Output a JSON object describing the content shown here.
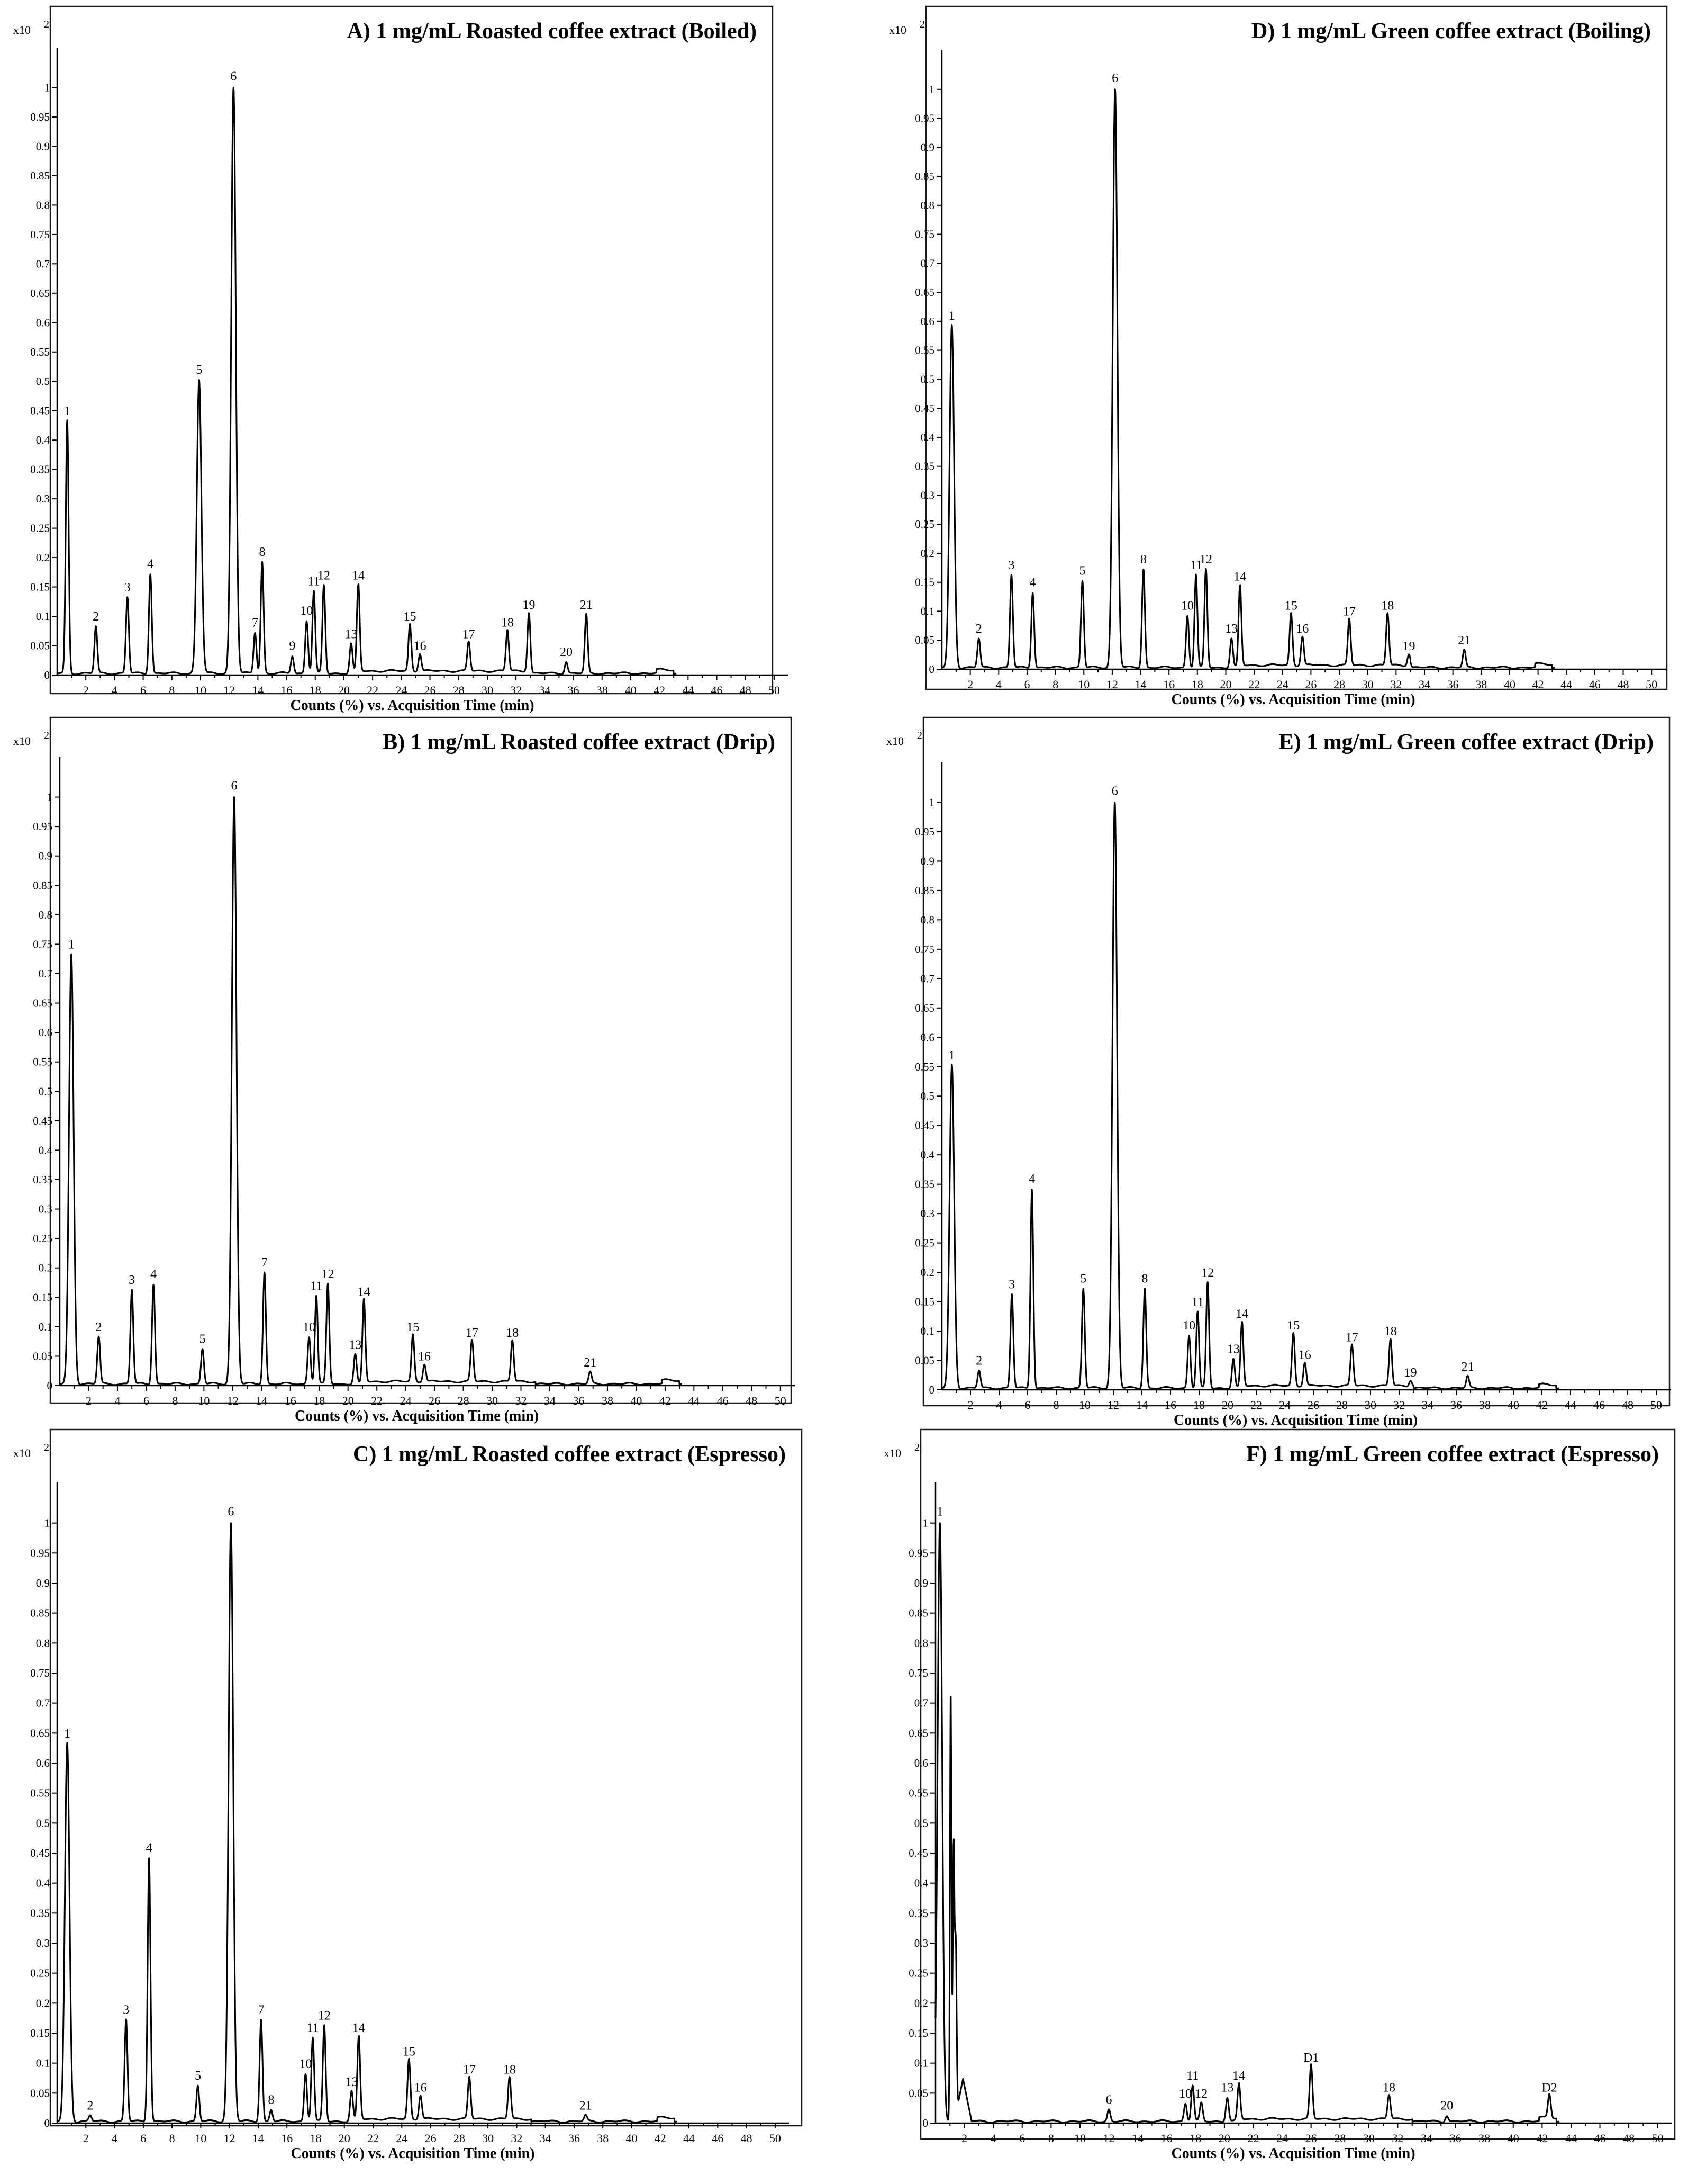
{
  "figure": {
    "x_caption": "Counts (%) vs. Acquisition Time (min)",
    "y_scale_label": "x10",
    "y_scale_exponent": "2"
  },
  "chart_data": [
    {
      "id": "A",
      "type": "line",
      "title": "A) 1 mg/mL Roasted coffee extract (Boiled)",
      "xlabel": "Counts (%) vs. Acquisition Time (min)",
      "ylabel": "x10 2",
      "xlim": [
        0,
        51
      ],
      "ylim": [
        0,
        1.05
      ],
      "x_ticks": [
        2,
        4,
        6,
        8,
        10,
        12,
        14,
        16,
        18,
        20,
        22,
        24,
        26,
        28,
        30,
        32,
        34,
        36,
        38,
        40,
        42,
        44,
        46,
        48,
        50
      ],
      "y_ticks": [
        0,
        0.05,
        0.1,
        0.15,
        0.2,
        0.25,
        0.3,
        0.35,
        0.4,
        0.45,
        0.5,
        0.55,
        0.6,
        0.65,
        0.7,
        0.75,
        0.8,
        0.85,
        0.9,
        0.95,
        1
      ],
      "peaks": [
        {
          "label": "1",
          "time": 0.7,
          "height": 0.43
        },
        {
          "label": "2",
          "time": 2.7,
          "height": 0.08
        },
        {
          "label": "3",
          "time": 4.9,
          "height": 0.13
        },
        {
          "label": "4",
          "time": 6.5,
          "height": 0.17
        },
        {
          "label": "5",
          "time": 9.9,
          "height": 0.5
        },
        {
          "label": "6",
          "time": 12.3,
          "height": 1.0
        },
        {
          "label": "7",
          "time": 13.8,
          "height": 0.07
        },
        {
          "label": "8",
          "time": 14.3,
          "height": 0.19
        },
        {
          "label": "9",
          "time": 16.4,
          "height": 0.03
        },
        {
          "label": "10",
          "time": 17.4,
          "height": 0.09
        },
        {
          "label": "11",
          "time": 17.9,
          "height": 0.14
        },
        {
          "label": "12",
          "time": 18.6,
          "height": 0.15
        },
        {
          "label": "13",
          "time": 20.5,
          "height": 0.05
        },
        {
          "label": "14",
          "time": 21.0,
          "height": 0.15
        },
        {
          "label": "15",
          "time": 24.6,
          "height": 0.08
        },
        {
          "label": "16",
          "time": 25.3,
          "height": 0.03
        },
        {
          "label": "17",
          "time": 28.7,
          "height": 0.05
        },
        {
          "label": "18",
          "time": 31.4,
          "height": 0.07
        },
        {
          "label": "19",
          "time": 32.9,
          "height": 0.1
        },
        {
          "label": "20",
          "time": 35.5,
          "height": 0.02
        },
        {
          "label": "21",
          "time": 36.9,
          "height": 0.1
        }
      ]
    },
    {
      "id": "B",
      "type": "line",
      "title": "B) 1 mg/mL Roasted coffee extract (Drip)",
      "xlabel": "Counts (%) vs. Acquisition Time (min)",
      "ylabel": "x10 2",
      "xlim": [
        0,
        51
      ],
      "ylim": [
        0,
        1.05
      ],
      "x_ticks": [
        2,
        4,
        6,
        8,
        10,
        12,
        14,
        16,
        18,
        20,
        22,
        24,
        26,
        28,
        30,
        32,
        34,
        36,
        38,
        40,
        42,
        44,
        46,
        48,
        50
      ],
      "y_ticks": [
        0,
        0.05,
        0.1,
        0.15,
        0.2,
        0.25,
        0.3,
        0.35,
        0.4,
        0.45,
        0.5,
        0.55,
        0.6,
        0.65,
        0.7,
        0.75,
        0.8,
        0.85,
        0.9,
        0.95,
        1
      ],
      "peaks": [
        {
          "label": "1",
          "time": 0.8,
          "height": 0.73
        },
        {
          "label": "2",
          "time": 2.7,
          "height": 0.08
        },
        {
          "label": "3",
          "time": 5.0,
          "height": 0.16
        },
        {
          "label": "4",
          "time": 6.5,
          "height": 0.17
        },
        {
          "label": "5",
          "time": 9.9,
          "height": 0.06
        },
        {
          "label": "6",
          "time": 12.1,
          "height": 1.0
        },
        {
          "label": "7",
          "time": 14.2,
          "height": 0.19
        },
        {
          "label": "10",
          "time": 17.3,
          "height": 0.08
        },
        {
          "label": "11",
          "time": 17.8,
          "height": 0.15
        },
        {
          "label": "12",
          "time": 18.6,
          "height": 0.17
        },
        {
          "label": "13",
          "time": 20.5,
          "height": 0.05
        },
        {
          "label": "14",
          "time": 21.1,
          "height": 0.14
        },
        {
          "label": "15",
          "time": 24.5,
          "height": 0.08
        },
        {
          "label": "16",
          "time": 25.3,
          "height": 0.03
        },
        {
          "label": "17",
          "time": 28.6,
          "height": 0.07
        },
        {
          "label": "18",
          "time": 31.4,
          "height": 0.07
        },
        {
          "label": "21",
          "time": 36.8,
          "height": 0.02
        }
      ]
    },
    {
      "id": "C",
      "type": "line",
      "title": "C) 1 mg/mL Roasted coffee extract (Espresso)",
      "xlabel": "Counts (%) vs. Acquisition Time (min)",
      "ylabel": "x10 2",
      "xlim": [
        0,
        51
      ],
      "ylim": [
        0,
        1.05
      ],
      "x_ticks": [
        2,
        4,
        6,
        8,
        10,
        12,
        14,
        16,
        18,
        20,
        22,
        24,
        26,
        28,
        30,
        32,
        34,
        36,
        38,
        40,
        42,
        44,
        46,
        48,
        50
      ],
      "y_ticks": [
        0,
        0.05,
        0.1,
        0.15,
        0.2,
        0.25,
        0.3,
        0.35,
        0.4,
        0.45,
        0.5,
        0.55,
        0.6,
        0.65,
        0.7,
        0.75,
        0.8,
        0.85,
        0.9,
        0.95,
        1
      ],
      "peaks": [
        {
          "label": "1",
          "time": 0.7,
          "height": 0.63
        },
        {
          "label": "2",
          "time": 2.3,
          "height": 0.01
        },
        {
          "label": "3",
          "time": 4.8,
          "height": 0.17
        },
        {
          "label": "4",
          "time": 6.4,
          "height": 0.44
        },
        {
          "label": "5",
          "time": 9.8,
          "height": 0.06
        },
        {
          "label": "6",
          "time": 12.1,
          "height": 1.0
        },
        {
          "label": "7",
          "time": 14.2,
          "height": 0.17
        },
        {
          "label": "8",
          "time": 14.9,
          "height": 0.02
        },
        {
          "label": "10",
          "time": 17.3,
          "height": 0.08
        },
        {
          "label": "11",
          "time": 17.8,
          "height": 0.14
        },
        {
          "label": "12",
          "time": 18.6,
          "height": 0.16
        },
        {
          "label": "13",
          "time": 20.5,
          "height": 0.05
        },
        {
          "label": "14",
          "time": 21.0,
          "height": 0.14
        },
        {
          "label": "15",
          "time": 24.5,
          "height": 0.1
        },
        {
          "label": "16",
          "time": 25.3,
          "height": 0.04
        },
        {
          "label": "17",
          "time": 28.7,
          "height": 0.07
        },
        {
          "label": "18",
          "time": 31.5,
          "height": 0.07
        },
        {
          "label": "21",
          "time": 36.8,
          "height": 0.01
        }
      ]
    },
    {
      "id": "D",
      "type": "line",
      "title": "D) 1 mg/mL Green coffee extract (Boiling)",
      "xlabel": "Counts (%) vs. Acquisition Time (min)",
      "ylabel": "x10 2",
      "xlim": [
        0,
        51
      ],
      "ylim": [
        0,
        1.05
      ],
      "x_ticks": [
        2,
        4,
        6,
        8,
        10,
        12,
        14,
        16,
        18,
        20,
        22,
        24,
        26,
        28,
        30,
        32,
        34,
        36,
        38,
        40,
        42,
        44,
        46,
        48,
        50
      ],
      "y_ticks": [
        0,
        0.05,
        0.1,
        0.15,
        0.2,
        0.25,
        0.3,
        0.35,
        0.4,
        0.45,
        0.5,
        0.55,
        0.6,
        0.65,
        0.7,
        0.75,
        0.8,
        0.85,
        0.9,
        0.95,
        1
      ],
      "peaks": [
        {
          "label": "1",
          "time": 0.7,
          "height": 0.59
        },
        {
          "label": "2",
          "time": 2.6,
          "height": 0.05
        },
        {
          "label": "3",
          "time": 4.9,
          "height": 0.16
        },
        {
          "label": "4",
          "time": 6.4,
          "height": 0.13
        },
        {
          "label": "5",
          "time": 9.9,
          "height": 0.15
        },
        {
          "label": "6",
          "time": 12.2,
          "height": 1.0
        },
        {
          "label": "8",
          "time": 14.2,
          "height": 0.17
        },
        {
          "label": "10",
          "time": 17.3,
          "height": 0.09
        },
        {
          "label": "11",
          "time": 17.9,
          "height": 0.16
        },
        {
          "label": "12",
          "time": 18.6,
          "height": 0.17
        },
        {
          "label": "13",
          "time": 20.4,
          "height": 0.05
        },
        {
          "label": "14",
          "time": 21.0,
          "height": 0.14
        },
        {
          "label": "15",
          "time": 24.6,
          "height": 0.09
        },
        {
          "label": "16",
          "time": 25.4,
          "height": 0.05
        },
        {
          "label": "17",
          "time": 28.7,
          "height": 0.08
        },
        {
          "label": "18",
          "time": 31.4,
          "height": 0.09
        },
        {
          "label": "19",
          "time": 32.9,
          "height": 0.02
        },
        {
          "label": "21",
          "time": 36.8,
          "height": 0.03
        }
      ]
    },
    {
      "id": "E",
      "type": "line",
      "title": "E) 1 mg/mL Green coffee extract (Drip)",
      "xlabel": "Counts (%) vs. Acquisition Time (min)",
      "ylabel": "x10 2",
      "xlim": [
        0,
        51
      ],
      "ylim": [
        0,
        1.05
      ],
      "x_ticks": [
        2,
        4,
        6,
        8,
        10,
        12,
        14,
        16,
        18,
        20,
        22,
        24,
        26,
        28,
        30,
        32,
        34,
        36,
        38,
        40,
        42,
        44,
        46,
        48,
        50
      ],
      "y_ticks": [
        0,
        0.05,
        0.1,
        0.15,
        0.2,
        0.25,
        0.3,
        0.35,
        0.4,
        0.45,
        0.5,
        0.55,
        0.6,
        0.65,
        0.7,
        0.75,
        0.8,
        0.85,
        0.9,
        0.95,
        1
      ],
      "peaks": [
        {
          "label": "1",
          "time": 0.7,
          "height": 0.55
        },
        {
          "label": "2",
          "time": 2.6,
          "height": 0.03
        },
        {
          "label": "3",
          "time": 4.9,
          "height": 0.16
        },
        {
          "label": "4",
          "time": 6.3,
          "height": 0.34
        },
        {
          "label": "5",
          "time": 9.9,
          "height": 0.17
        },
        {
          "label": "6",
          "time": 12.1,
          "height": 1.0
        },
        {
          "label": "8",
          "time": 14.2,
          "height": 0.17
        },
        {
          "label": "10",
          "time": 17.3,
          "height": 0.09
        },
        {
          "label": "11",
          "time": 17.9,
          "height": 0.13
        },
        {
          "label": "12",
          "time": 18.6,
          "height": 0.18
        },
        {
          "label": "13",
          "time": 20.4,
          "height": 0.05
        },
        {
          "label": "14",
          "time": 21.0,
          "height": 0.11
        },
        {
          "label": "15",
          "time": 24.6,
          "height": 0.09
        },
        {
          "label": "16",
          "time": 25.4,
          "height": 0.04
        },
        {
          "label": "17",
          "time": 28.7,
          "height": 0.07
        },
        {
          "label": "18",
          "time": 31.4,
          "height": 0.08
        },
        {
          "label": "19",
          "time": 32.8,
          "height": 0.01
        },
        {
          "label": "21",
          "time": 36.8,
          "height": 0.02
        }
      ]
    },
    {
      "id": "F",
      "type": "line",
      "title": "F) 1 mg/mL Green coffee extract (Espresso)",
      "xlabel": "Counts (%) vs. Acquisition Time (min)",
      "ylabel": "x10 2",
      "xlim": [
        0,
        51
      ],
      "ylim": [
        0,
        1.05
      ],
      "x_ticks": [
        2,
        4,
        6,
        8,
        10,
        12,
        14,
        16,
        18,
        20,
        22,
        24,
        26,
        28,
        30,
        32,
        34,
        36,
        38,
        40,
        42,
        44,
        46,
        48,
        50
      ],
      "y_ticks": [
        0,
        0.05,
        0.1,
        0.15,
        0.2,
        0.25,
        0.3,
        0.35,
        0.4,
        0.45,
        0.5,
        0.55,
        0.6,
        0.65,
        0.7,
        0.75,
        0.8,
        0.85,
        0.9,
        0.95,
        1
      ],
      "peaks": [
        {
          "label": "1",
          "time": 0.3,
          "height": 1.0
        },
        {
          "label": "6",
          "time": 12.0,
          "height": 0.02
        },
        {
          "label": "10",
          "time": 17.3,
          "height": 0.03
        },
        {
          "label": "11",
          "time": 17.8,
          "height": 0.06
        },
        {
          "label": "12",
          "time": 18.4,
          "height": 0.03
        },
        {
          "label": "13",
          "time": 20.2,
          "height": 0.04
        },
        {
          "label": "14",
          "time": 21.0,
          "height": 0.06
        },
        {
          "label": "D1",
          "time": 26.0,
          "height": 0.09
        },
        {
          "label": "18",
          "time": 31.4,
          "height": 0.04
        },
        {
          "label": "20",
          "time": 35.4,
          "height": 0.01
        },
        {
          "label": "D2",
          "time": 42.5,
          "height": 0.04
        }
      ]
    }
  ]
}
